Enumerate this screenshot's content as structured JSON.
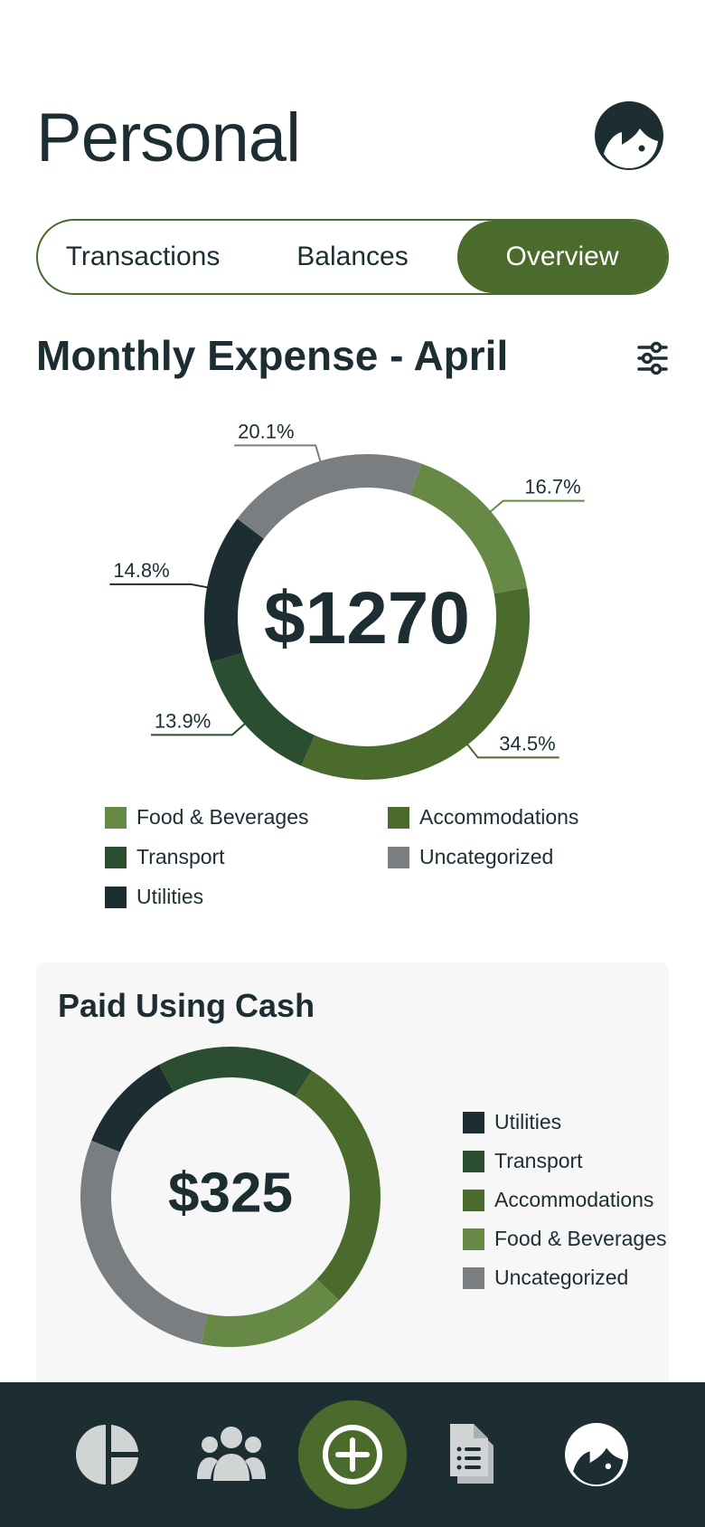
{
  "header": {
    "title": "Personal",
    "avatar_icon": "user-avatar-icon"
  },
  "tabs": [
    {
      "label": "Transactions",
      "active": false
    },
    {
      "label": "Balances",
      "active": false
    },
    {
      "label": "Overview",
      "active": true
    }
  ],
  "monthly": {
    "title": "Monthly Expense - April",
    "filter_icon": "sliders-icon",
    "total": "$1270"
  },
  "cash": {
    "title": "Paid Using Cash",
    "total": "$325"
  },
  "colors": {
    "food": "#668a45",
    "accommodations": "#4a6b2b",
    "transport": "#2a4e2f",
    "utilities": "#1d2e33",
    "uncategorized": "#7b7e80",
    "accent": "#4a6b2b",
    "nav_bg": "#1d2e33"
  },
  "chart_data": [
    {
      "type": "pie",
      "variant": "donut",
      "center_label": "$1270",
      "categories": [
        "Food & Beverages",
        "Accommodations",
        "Transport",
        "Utilities",
        "Uncategorized"
      ],
      "values": [
        16.7,
        34.5,
        13.9,
        14.8,
        20.1
      ],
      "value_labels": [
        "16.7%",
        "34.5%",
        "13.9%",
        "14.8%",
        "20.1%"
      ],
      "legend_placement": "bottom"
    },
    {
      "type": "pie",
      "variant": "donut",
      "center_label": "$325",
      "categories": [
        "Utilities",
        "Transport",
        "Accommodations",
        "Food & Beverages",
        "Uncategorized"
      ],
      "values": [
        11,
        17,
        28,
        16,
        28
      ],
      "legend_placement": "right"
    }
  ],
  "bottom_nav": [
    {
      "name": "overview",
      "icon": "pie-chart-icon"
    },
    {
      "name": "groups",
      "icon": "users-icon"
    },
    {
      "name": "add",
      "icon": "plus-circle-icon"
    },
    {
      "name": "documents",
      "icon": "document-icon"
    },
    {
      "name": "profile",
      "icon": "user-avatar-icon"
    }
  ]
}
